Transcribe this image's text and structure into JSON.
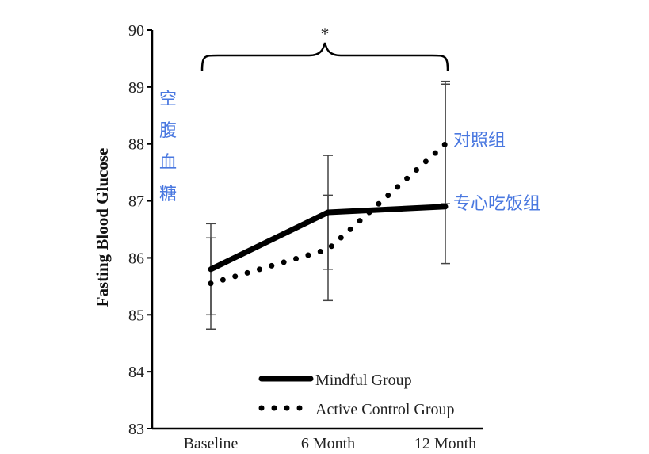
{
  "chart_data": {
    "type": "line",
    "categories": [
      "Baseline",
      "6 Month",
      "12 Month"
    ],
    "ylabel": "Fasting Blood Glucose",
    "ylim": [
      83,
      90
    ],
    "yticks": [
      "83",
      "84",
      "85",
      "86",
      "87",
      "88",
      "89",
      "90"
    ],
    "grid": false,
    "legend_position": "bottom-right",
    "series": [
      {
        "name": "Mindful Group",
        "style": "solid",
        "color": "#000000",
        "values": [
          85.8,
          86.8,
          86.9
        ],
        "error_low": [
          85.0,
          85.8,
          85.9
        ],
        "error_high": [
          86.6,
          87.8,
          89.1
        ]
      },
      {
        "name": "Active Control Group",
        "style": "dotted",
        "color": "#000000",
        "values": [
          85.55,
          86.15,
          88.0
        ],
        "error_low": [
          84.75,
          85.25,
          86.95
        ],
        "error_high": [
          86.35,
          87.1,
          89.05
        ]
      }
    ],
    "significance_marker": "*",
    "annotations": [
      {
        "text": "空腹血糖",
        "color": "#4a78e0"
      },
      {
        "text": "对照组",
        "color": "#4a78e0"
      },
      {
        "text": "专心吃饭组",
        "color": "#4a78e0"
      }
    ]
  }
}
